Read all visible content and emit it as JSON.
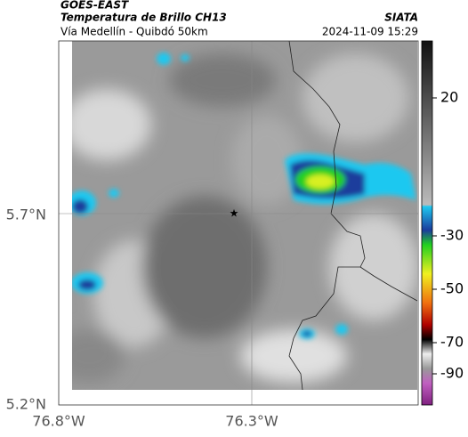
{
  "header": {
    "title": "GOES-EAST",
    "subtitle": "Temperatura de Brillo CH13",
    "source": "SIATA",
    "route": "Vía Medellín - Quibdó 50km",
    "timestamp": "2024-11-09 15:29"
  },
  "map": {
    "lat_labels": [
      "5.7°N",
      "5.2°N"
    ],
    "lon_labels": [
      "76.8°W",
      "76.3°W"
    ]
  },
  "colorbar": {
    "ticks": [
      20,
      -30,
      -50,
      -70,
      -90
    ]
  }
}
